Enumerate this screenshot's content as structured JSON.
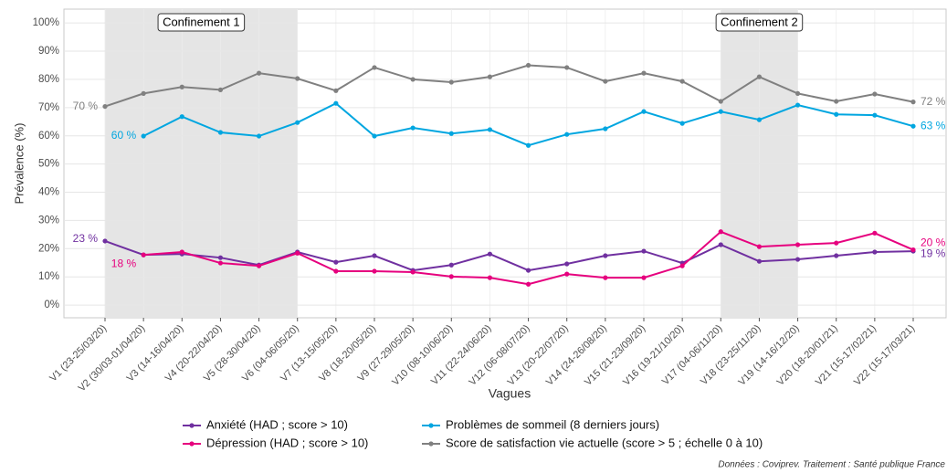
{
  "chart_data": {
    "type": "line",
    "y_label": "Prévalence (%)",
    "x_label": "Vagues",
    "source": "Données : Coviprev. Traitement : Santé publique France",
    "categories": [
      "V1 (23-25/03/20)",
      "V2 (30/03-01/04/20)",
      "V3 (14-16/04/20)",
      "V4 (20-22/04/20)",
      "V5 (28-30/04/20)",
      "V6 (04-06/05/20)",
      "V7 (13-15/05/20)",
      "V8 (18-20/05/20)",
      "V9 (27-29/05/20)",
      "V10 (08-10/06/20)",
      "V11 (22-24/06/20)",
      "V12 (06-08/07/20)",
      "V13 (20-22/07/20)",
      "V14 (24-26/08/20)",
      "V15 (21-23/09/20)",
      "V16 (19-21/10/20)",
      "V17 (04-06/11/20)",
      "V18 (23-25/11/20)",
      "V19 (14-16/12/20)",
      "V20 (18-20/01/21)",
      "V21 (15-17/02/21)",
      "V22 (15-17/03/21)"
    ],
    "series": [
      {
        "name": "Anxiété (HAD ; score > 10)",
        "color": "#7030a0",
        "values": [
          22.7,
          17.8,
          18.1,
          16.8,
          14.2,
          18.8,
          15.2,
          17.5,
          12.3,
          14.2,
          18.1,
          12.3,
          14.6,
          17.5,
          19.1,
          14.9,
          21.4,
          15.5,
          16.2,
          17.5,
          18.8,
          19.1
        ],
        "value_labels": [
          "23 %",
          null,
          null,
          null,
          null,
          null,
          null,
          null,
          null,
          null,
          null,
          null,
          null,
          null,
          null,
          null,
          null,
          null,
          null,
          null,
          null,
          "19 %"
        ]
      },
      {
        "name": "Dépression (HAD ; score > 10)",
        "color": "#e6007e",
        "values": [
          null,
          17.8,
          18.8,
          14.9,
          13.9,
          18.4,
          12.0,
          12.0,
          11.7,
          10.1,
          9.7,
          7.4,
          11.0,
          9.7,
          9.7,
          13.9,
          26.0,
          20.7,
          21.4,
          22.0,
          25.5,
          19.6
        ],
        "value_labels": [
          null,
          "18 %",
          null,
          null,
          null,
          null,
          null,
          null,
          null,
          null,
          null,
          null,
          null,
          null,
          null,
          null,
          null,
          null,
          null,
          null,
          null,
          "20 %"
        ]
      },
      {
        "name": "Problèmes de sommeil (8 derniers jours)",
        "color": "#00a6e0",
        "values": [
          null,
          59.9,
          66.8,
          61.2,
          59.9,
          64.7,
          71.5,
          59.9,
          62.8,
          60.8,
          62.2,
          56.6,
          60.5,
          62.5,
          68.6,
          64.4,
          68.6,
          65.7,
          70.9,
          67.6,
          67.3,
          63.4
        ],
        "value_labels": [
          null,
          "60 %",
          null,
          null,
          null,
          null,
          null,
          null,
          null,
          null,
          null,
          null,
          null,
          null,
          null,
          null,
          null,
          null,
          null,
          null,
          null,
          "63 %"
        ]
      },
      {
        "name": "Score de satisfaction vie actuelle (score > 5 ; échelle 0 à 10)",
        "color": "#808080",
        "values": [
          70.4,
          75.0,
          77.3,
          76.3,
          82.2,
          80.3,
          76.0,
          84.2,
          80.0,
          79.0,
          80.9,
          85.0,
          84.2,
          79.3,
          82.2,
          79.3,
          72.2,
          80.9,
          75.0,
          72.2,
          74.8,
          72.0
        ],
        "value_labels": [
          "70 %",
          null,
          null,
          null,
          null,
          null,
          null,
          null,
          null,
          null,
          null,
          null,
          null,
          null,
          null,
          null,
          null,
          null,
          null,
          null,
          null,
          "72 %"
        ]
      }
    ],
    "shaded_regions": [
      {
        "label": "Confinement 1",
        "start": 0,
        "end": 5
      },
      {
        "label": "Confinement 2",
        "start": 16,
        "end": 18
      }
    ],
    "ylim": [
      -4.5,
      104.9
    ],
    "yticks": [
      {
        "value": 0,
        "label": "0%"
      },
      {
        "value": 10,
        "label": "10%"
      },
      {
        "value": 20,
        "label": "20%"
      },
      {
        "value": 30,
        "label": "30%"
      },
      {
        "value": 40,
        "label": "40%"
      },
      {
        "value": 50,
        "label": "50%"
      },
      {
        "value": 60,
        "label": "60%"
      },
      {
        "value": 70,
        "label": "70%"
      },
      {
        "value": 80,
        "label": "80%"
      },
      {
        "value": 90,
        "label": "90%"
      },
      {
        "value": 100,
        "label": "100%"
      }
    ],
    "grid": true,
    "legend": "bottom"
  }
}
